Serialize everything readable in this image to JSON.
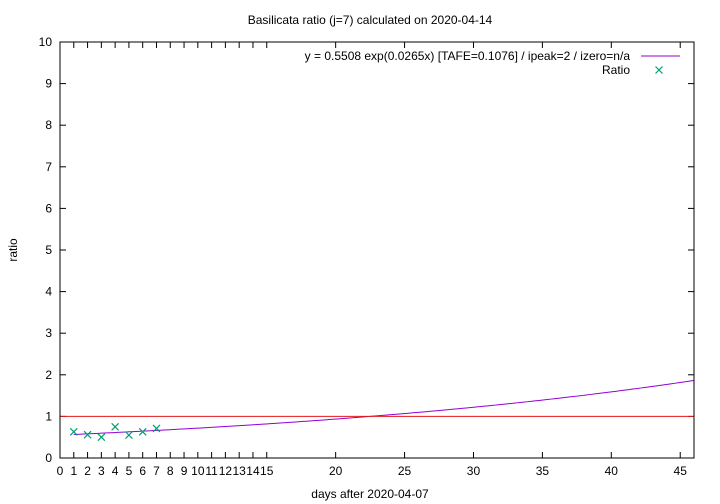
{
  "chart_data": {
    "type": "scatter",
    "title": "Basilicata ratio (j=7) calculated on 2020-04-14",
    "xlabel": "days after 2020-04-07",
    "ylabel": "ratio",
    "xlim": [
      0,
      46
    ],
    "ylim": [
      0,
      10
    ],
    "x_ticks": [
      {
        "value": 0,
        "label": "0"
      },
      {
        "value": 1,
        "label": "1"
      },
      {
        "value": 2,
        "label": "2"
      },
      {
        "value": 3,
        "label": "3"
      },
      {
        "value": 4,
        "label": "4"
      },
      {
        "value": 5,
        "label": "5"
      },
      {
        "value": 6,
        "label": "6"
      },
      {
        "value": 7,
        "label": "7"
      },
      {
        "value": 8,
        "label": "8"
      },
      {
        "value": 9,
        "label": "9"
      },
      {
        "value": 10,
        "label": "10"
      },
      {
        "value": 11,
        "label": "11"
      },
      {
        "value": 12,
        "label": "12"
      },
      {
        "value": 13,
        "label": "13"
      },
      {
        "value": 14,
        "label": "14"
      },
      {
        "value": 15,
        "label": "15"
      },
      {
        "value": 20,
        "label": "20"
      },
      {
        "value": 25,
        "label": "25"
      },
      {
        "value": 30,
        "label": "30"
      },
      {
        "value": 35,
        "label": "35"
      },
      {
        "value": 40,
        "label": "40"
      },
      {
        "value": 45,
        "label": "45"
      }
    ],
    "y_ticks": [
      {
        "value": 0,
        "label": "0"
      },
      {
        "value": 1,
        "label": "1"
      },
      {
        "value": 2,
        "label": "2"
      },
      {
        "value": 3,
        "label": "3"
      },
      {
        "value": 4,
        "label": "4"
      },
      {
        "value": 5,
        "label": "5"
      },
      {
        "value": 6,
        "label": "6"
      },
      {
        "value": 7,
        "label": "7"
      },
      {
        "value": 8,
        "label": "8"
      },
      {
        "value": 9,
        "label": "9"
      },
      {
        "value": 10,
        "label": "10"
      }
    ],
    "series": [
      {
        "name": "y = 0.5508 exp(0.0265x)  [TAFE=0.1076] / ipeak=2 / izero=n/a",
        "kind": "fit-curve",
        "a": 0.5508,
        "b": 0.0265,
        "x_start": 1,
        "x_end": 46,
        "color": "#9400d3"
      },
      {
        "name": "Ratio",
        "kind": "points",
        "marker": "x",
        "color": "#009e73",
        "x": [
          1,
          2,
          3,
          4,
          5,
          6,
          7
        ],
        "y": [
          0.63,
          0.56,
          0.5,
          0.75,
          0.55,
          0.63,
          0.71
        ]
      },
      {
        "name": "",
        "kind": "hline",
        "y": 1,
        "color": "#e41a1c"
      }
    ],
    "legend": {
      "position": "top-right",
      "entries": [
        "y = 0.5508 exp(0.0265x)  [TAFE=0.1076] / ipeak=2 / izero=n/a",
        "Ratio"
      ]
    },
    "grid": false
  }
}
